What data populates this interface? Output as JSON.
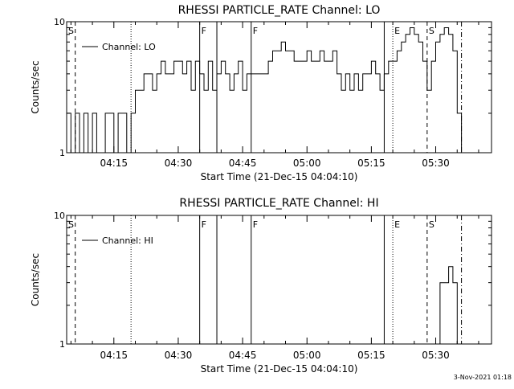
{
  "chart_data": [
    {
      "type": "line",
      "title": "RHESSI PARTICLE_RATE Channel: LO",
      "xlabel": "Start Time (21-Dec-15 04:04:10)",
      "ylabel": "Counts/sec",
      "yscale": "log",
      "ylim": [
        1,
        10
      ],
      "y_ticks": [
        {
          "value": 1,
          "label": "1"
        },
        {
          "value": 10,
          "label": "10"
        }
      ],
      "xlim": [
        "04:04",
        "05:43"
      ],
      "x_ticks": [
        "04:15",
        "04:30",
        "04:45",
        "05:00",
        "05:15",
        "05:30"
      ],
      "legend": {
        "label": "Channel: LO",
        "placement": "top-left"
      },
      "markers": [
        {
          "label": "S",
          "time": "04:04",
          "style": "none"
        },
        {
          "label": "",
          "time": "04:06",
          "style": "dashed"
        },
        {
          "label": "",
          "time": "04:19",
          "style": "dotted"
        },
        {
          "label": "F",
          "time": "04:35",
          "style": "solid"
        },
        {
          "label": "",
          "time": "04:39",
          "style": "solid"
        },
        {
          "label": "F",
          "time": "04:47",
          "style": "solid"
        },
        {
          "label": "",
          "time": "05:18",
          "style": "solid"
        },
        {
          "label": "E",
          "time": "05:20",
          "style": "dotted"
        },
        {
          "label": "S",
          "time": "05:28",
          "style": "dashed"
        },
        {
          "label": "",
          "time": "05:36",
          "style": "dashdot"
        }
      ],
      "segments": [
        {
          "x": [
            "04:04",
            "04:05",
            "04:06",
            "04:07",
            "04:08",
            "04:09",
            "04:10",
            "04:11",
            "04:12",
            "04:13",
            "04:14",
            "04:15",
            "04:16",
            "04:17",
            "04:18",
            "04:19",
            "04:20",
            "04:21",
            "04:22",
            "04:23",
            "04:24",
            "04:25",
            "04:26",
            "04:27",
            "04:28",
            "04:29",
            "04:30",
            "04:31",
            "04:32",
            "04:33",
            "04:34",
            "04:35"
          ],
          "y": [
            2,
            1,
            2,
            1,
            2,
            1,
            2,
            1,
            1,
            2,
            2,
            1,
            2,
            2,
            1,
            2,
            3,
            3,
            4,
            4,
            3,
            4,
            5,
            4,
            4,
            5,
            5,
            4,
            5,
            3,
            5,
            4
          ]
        },
        {
          "x": [
            "04:35",
            "04:36",
            "04:37",
            "04:38",
            "04:39"
          ],
          "y": [
            4,
            3,
            5,
            3,
            4
          ]
        },
        {
          "x": [
            "04:39",
            "04:40",
            "04:41",
            "04:42",
            "04:43",
            "04:44",
            "04:45",
            "04:46",
            "04:47"
          ],
          "y": [
            4,
            5,
            4,
            3,
            4,
            5,
            3,
            4,
            4
          ]
        },
        {
          "x": [
            "04:47",
            "04:48",
            "04:49",
            "04:50",
            "04:51",
            "04:52",
            "04:53",
            "04:54",
            "04:55",
            "04:56",
            "04:57",
            "04:58",
            "04:59",
            "05:00",
            "05:01",
            "05:02",
            "05:03",
            "05:04",
            "05:05",
            "05:06",
            "05:07",
            "05:08",
            "05:09",
            "05:10",
            "05:11",
            "05:12",
            "05:13",
            "05:14",
            "05:15",
            "05:16",
            "05:17",
            "05:18"
          ],
          "y": [
            4,
            4,
            4,
            4,
            5,
            6,
            6,
            7,
            6,
            6,
            5,
            5,
            5,
            6,
            5,
            5,
            6,
            5,
            5,
            6,
            4,
            3,
            4,
            3,
            4,
            3,
            4,
            4,
            5,
            4,
            3,
            4
          ]
        },
        {
          "x": [
            "05:18",
            "05:19",
            "05:20",
            "05:21",
            "05:22",
            "05:23",
            "05:24",
            "05:25",
            "05:26",
            "05:27",
            "05:28",
            "05:29",
            "05:30",
            "05:31",
            "05:32",
            "05:33",
            "05:34",
            "05:35",
            "05:36"
          ],
          "y": [
            4,
            5,
            5,
            6,
            7,
            8,
            9,
            8,
            7,
            5,
            3,
            5,
            7,
            8,
            9,
            8,
            6,
            2,
            1
          ]
        }
      ]
    },
    {
      "type": "line",
      "title": "RHESSI PARTICLE_RATE Channel: HI",
      "xlabel": "Start Time (21-Dec-15 04:04:10)",
      "ylabel": "Counts/sec",
      "yscale": "log",
      "ylim": [
        1,
        10
      ],
      "y_ticks": [
        {
          "value": 1,
          "label": "1"
        },
        {
          "value": 10,
          "label": "10"
        }
      ],
      "xlim": [
        "04:04",
        "05:43"
      ],
      "x_ticks": [
        "04:15",
        "04:30",
        "04:45",
        "05:00",
        "05:15",
        "05:30"
      ],
      "legend": {
        "label": "Channel: HI",
        "placement": "top-left"
      },
      "markers": [
        {
          "label": "S",
          "time": "04:04",
          "style": "none"
        },
        {
          "label": "",
          "time": "04:06",
          "style": "dashed"
        },
        {
          "label": "",
          "time": "04:19",
          "style": "dotted"
        },
        {
          "label": "F",
          "time": "04:35",
          "style": "solid"
        },
        {
          "label": "",
          "time": "04:39",
          "style": "solid"
        },
        {
          "label": "F",
          "time": "04:47",
          "style": "solid"
        },
        {
          "label": "",
          "time": "05:18",
          "style": "solid"
        },
        {
          "label": "E",
          "time": "05:20",
          "style": "dotted"
        },
        {
          "label": "S",
          "time": "05:28",
          "style": "dashed"
        },
        {
          "label": "",
          "time": "05:36",
          "style": "dashdot"
        }
      ],
      "segments": [
        {
          "x": [
            "05:30",
            "05:31",
            "05:32",
            "05:33",
            "05:34",
            "05:35"
          ],
          "y": [
            1,
            3,
            3,
            4,
            3,
            1
          ]
        }
      ]
    }
  ],
  "footer": {
    "timestamp": "3-Nov-2021 01:18"
  }
}
